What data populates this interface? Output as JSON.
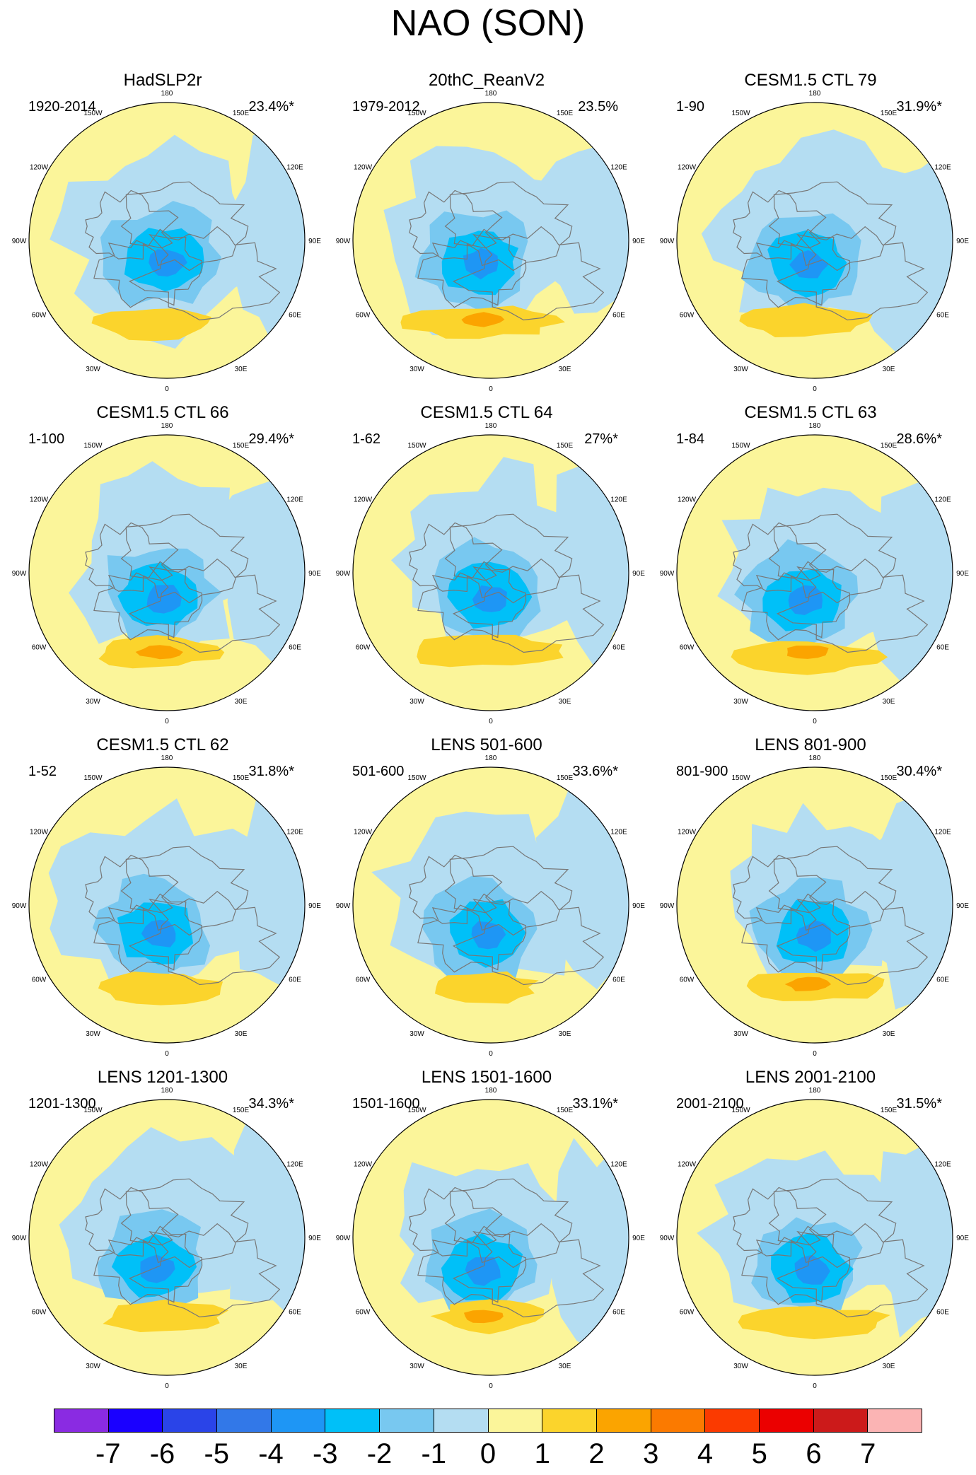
{
  "title": "NAO (SON)",
  "chart_data": {
    "type": "map",
    "description_units": "hPa",
    "projection": "north polar stereographic",
    "longitude_labels": [
      "180",
      "150E",
      "120E",
      "90E",
      "60E",
      "30E",
      "0",
      "30W",
      "60W",
      "90W",
      "120W",
      "150W"
    ],
    "panels": [
      {
        "title": "HadSLP2r",
        "period": "1920-2014",
        "variance": "23.4%*"
      },
      {
        "title": "20thC_ReanV2",
        "period": "1979-2012",
        "variance": "23.5%"
      },
      {
        "title": "CESM1.5 CTL 79",
        "period": "1-90",
        "variance": "31.9%*"
      },
      {
        "title": "CESM1.5 CTL 66",
        "period": "1-100",
        "variance": "29.4%*"
      },
      {
        "title": "CESM1.5 CTL 64",
        "period": "1-62",
        "variance": "27%*"
      },
      {
        "title": "CESM1.5 CTL 63",
        "period": "1-84",
        "variance": "28.6%*"
      },
      {
        "title": "CESM1.5 CTL 62",
        "period": "1-52",
        "variance": "31.8%*"
      },
      {
        "title": "LENS 501-600",
        "period": "501-600",
        "variance": "33.6%*"
      },
      {
        "title": "LENS 801-900",
        "period": "801-900",
        "variance": "30.4%*"
      },
      {
        "title": "LENS 1201-1300",
        "period": "1201-1300",
        "variance": "34.3%*"
      },
      {
        "title": "LENS 1501-1600",
        "period": "1501-1600",
        "variance": "33.1%*"
      },
      {
        "title": "LENS 2001-2100",
        "period": "2001-2100",
        "variance": "31.5%*"
      }
    ],
    "colorbar": {
      "labels": [
        "-7",
        "-6",
        "-5",
        "-4",
        "-3",
        "-2",
        "-1",
        "0",
        "1",
        "2",
        "3",
        "4",
        "5",
        "6",
        "7"
      ],
      "colors": [
        "#8a2be2",
        "#1a00ff",
        "#2a44e8",
        "#3278e8",
        "#1e96f5",
        "#00c0f8",
        "#78c8f0",
        "#b4ddf2",
        "#fbf59a",
        "#fbd42c",
        "#fba400",
        "#fb7a00",
        "#fb3a00",
        "#eb0000",
        "#cc1a1a",
        "#fbb4b4"
      ]
    }
  },
  "colors": {
    "ocean_yellow": "#fbf59a",
    "neg1": "#b4ddf2",
    "neg2": "#78c8f0",
    "neg3": "#00c0f8",
    "neg4": "#1e96f5",
    "pos1": "#fbd42c",
    "pos2": "#fba400",
    "coast": "#777777"
  }
}
